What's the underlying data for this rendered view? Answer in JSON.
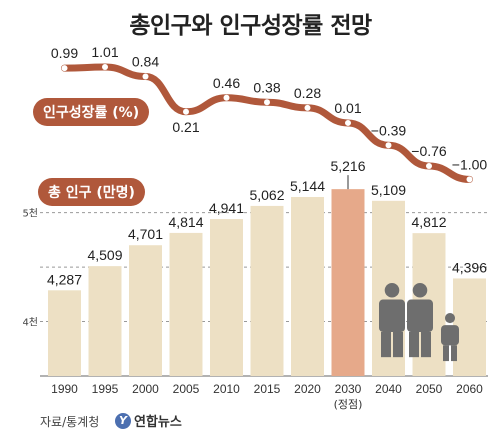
{
  "title": "총인구와 인구성장률 전망",
  "growth_badge": "인구성장률 (%)",
  "population_badge": "총 인구 (만명)",
  "footer": {
    "source": "자료/통계청",
    "logo_text": "연합뉴스",
    "logo_mark": "Y"
  },
  "colors": {
    "bar": "#ede0c4",
    "bar_highlight": "#e6a98a",
    "line": "#b0583b",
    "badge": "#b0583b",
    "people_icon": "#6e6e6e"
  },
  "chart_data": [
    {
      "type": "bar",
      "categories": [
        "1990",
        "1995",
        "2000",
        "2005",
        "2010",
        "2015",
        "2020",
        "2030",
        "2040",
        "2050",
        "2060"
      ],
      "category_sublabels": [
        "",
        "",
        "",
        "",
        "",
        "",
        "",
        "(정점)",
        "",
        "",
        ""
      ],
      "values": [
        4287,
        4509,
        4701,
        4814,
        4941,
        5062,
        5144,
        5216,
        5109,
        4812,
        4396
      ],
      "value_labels": [
        "4,287",
        "4,509",
        "4,701",
        "4,814",
        "4,941",
        "5,062",
        "5,144",
        "5,216",
        "5,109",
        "4,812",
        "4,396"
      ],
      "highlight_index": 7,
      "y_ticks": [
        {
          "value": 5000,
          "label": "5천"
        },
        {
          "value": 4000,
          "label": "4천"
        }
      ],
      "y_grid_values": [
        3500,
        4000,
        4500,
        5000
      ],
      "ylim": [
        3500,
        5300
      ],
      "grid": true
    },
    {
      "type": "line",
      "categories": [
        "1990",
        "1995",
        "2000",
        "2005",
        "2010",
        "2015",
        "2020",
        "2030",
        "2040",
        "2050",
        "2060"
      ],
      "values": [
        0.99,
        1.01,
        0.84,
        0.21,
        0.46,
        0.38,
        0.28,
        0.01,
        -0.39,
        -0.76,
        -1.0
      ],
      "value_labels": [
        "0.99",
        "1.01",
        "0.84",
        "0.21",
        "0.46",
        "0.38",
        "0.28",
        "0.01",
        "−0.39",
        "−0.76",
        "−1.00"
      ],
      "ylim": [
        -1.1,
        1.1
      ]
    }
  ]
}
